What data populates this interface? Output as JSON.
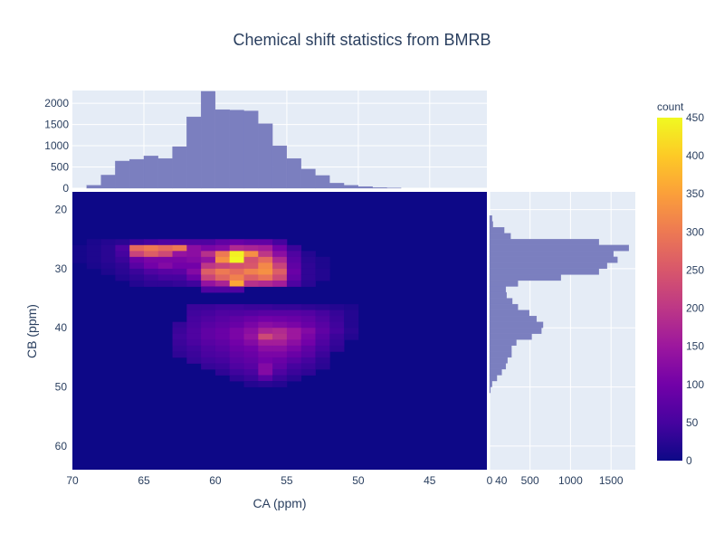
{
  "chart_data": {
    "title": "Chemical shift statistics from BMRB",
    "type": "heatmap",
    "main": {
      "xlabel": "CA (ppm)",
      "ylabel": "CB (ppm)",
      "xlim": [
        70,
        41
      ],
      "ylim": [
        17,
        64
      ],
      "x_ticks": [
        70,
        65,
        60,
        55,
        50,
        45,
        40
      ],
      "y_ticks": [
        20,
        30,
        40,
        50,
        60
      ],
      "bin_size": 1,
      "background_count": 0,
      "cells": [
        [
          69,
          26,
          8
        ],
        [
          69,
          27,
          8
        ],
        [
          69,
          28,
          8
        ],
        [
          68,
          25,
          12
        ],
        [
          68,
          26,
          15
        ],
        [
          68,
          27,
          15
        ],
        [
          68,
          28,
          15
        ],
        [
          68,
          29,
          12
        ],
        [
          67,
          25,
          20
        ],
        [
          67,
          26,
          25
        ],
        [
          67,
          27,
          25
        ],
        [
          67,
          28,
          25
        ],
        [
          67,
          29,
          20
        ],
        [
          67,
          30,
          15
        ],
        [
          66,
          25,
          25
        ],
        [
          66,
          26,
          60
        ],
        [
          66,
          27,
          50
        ],
        [
          66,
          28,
          40
        ],
        [
          66,
          29,
          30
        ],
        [
          66,
          30,
          25
        ],
        [
          66,
          31,
          18
        ],
        [
          65,
          25,
          40
        ],
        [
          65,
          26,
          280
        ],
        [
          65,
          27,
          220
        ],
        [
          65,
          28,
          90
        ],
        [
          65,
          29,
          70
        ],
        [
          65,
          30,
          40
        ],
        [
          65,
          31,
          30
        ],
        [
          65,
          32,
          20
        ],
        [
          64,
          25,
          50
        ],
        [
          64,
          26,
          300
        ],
        [
          64,
          27,
          260
        ],
        [
          64,
          28,
          110
        ],
        [
          64,
          29,
          100
        ],
        [
          64,
          30,
          60
        ],
        [
          64,
          31,
          40
        ],
        [
          64,
          32,
          30
        ],
        [
          63,
          25,
          60
        ],
        [
          63,
          26,
          280
        ],
        [
          63,
          27,
          230
        ],
        [
          63,
          28,
          110
        ],
        [
          63,
          29,
          120
        ],
        [
          63,
          30,
          70
        ],
        [
          63,
          31,
          50
        ],
        [
          63,
          32,
          30
        ],
        [
          62,
          25,
          60
        ],
        [
          62,
          26,
          300
        ],
        [
          62,
          27,
          140
        ],
        [
          62,
          28,
          110
        ],
        [
          62,
          29,
          100
        ],
        [
          62,
          30,
          75
        ],
        [
          62,
          31,
          50
        ],
        [
          62,
          32,
          35
        ],
        [
          61,
          25,
          60
        ],
        [
          61,
          26,
          130
        ],
        [
          61,
          27,
          130
        ],
        [
          61,
          28,
          120
        ],
        [
          61,
          29,
          100
        ],
        [
          61,
          30,
          120
        ],
        [
          61,
          31,
          90
        ],
        [
          61,
          32,
          45
        ],
        [
          60,
          25,
          60
        ],
        [
          60,
          26,
          110
        ],
        [
          60,
          27,
          190
        ],
        [
          60,
          28,
          140
        ],
        [
          60,
          29,
          200
        ],
        [
          60,
          30,
          260
        ],
        [
          60,
          31,
          220
        ],
        [
          60,
          32,
          140
        ],
        [
          60,
          33,
          60
        ],
        [
          59,
          25,
          80
        ],
        [
          59,
          26,
          120
        ],
        [
          59,
          27,
          300
        ],
        [
          59,
          28,
          330
        ],
        [
          59,
          29,
          220
        ],
        [
          59,
          30,
          300
        ],
        [
          59,
          31,
          270
        ],
        [
          59,
          32,
          170
        ],
        [
          59,
          33,
          60
        ],
        [
          58,
          25,
          90
        ],
        [
          58,
          26,
          180
        ],
        [
          58,
          27,
          440
        ],
        [
          58,
          28,
          460
        ],
        [
          58,
          29,
          240
        ],
        [
          58,
          30,
          280
        ],
        [
          58,
          31,
          310
        ],
        [
          58,
          32,
          360
        ],
        [
          58,
          33,
          60
        ],
        [
          57,
          25,
          80
        ],
        [
          57,
          26,
          170
        ],
        [
          57,
          27,
          330
        ],
        [
          57,
          28,
          240
        ],
        [
          57,
          29,
          250
        ],
        [
          57,
          30,
          310
        ],
        [
          57,
          31,
          260
        ],
        [
          57,
          32,
          190
        ],
        [
          56,
          25,
          80
        ],
        [
          56,
          26,
          160
        ],
        [
          56,
          27,
          200
        ],
        [
          56,
          28,
          280
        ],
        [
          56,
          29,
          320
        ],
        [
          56,
          30,
          330
        ],
        [
          56,
          31,
          290
        ],
        [
          56,
          32,
          180
        ],
        [
          55,
          25,
          50
        ],
        [
          55,
          26,
          100
        ],
        [
          55,
          27,
          130
        ],
        [
          55,
          28,
          180
        ],
        [
          55,
          29,
          220
        ],
        [
          55,
          30,
          260
        ],
        [
          55,
          31,
          230
        ],
        [
          55,
          32,
          160
        ],
        [
          54,
          26,
          40
        ],
        [
          54,
          27,
          60
        ],
        [
          54,
          28,
          70
        ],
        [
          54,
          29,
          80
        ],
        [
          54,
          30,
          90
        ],
        [
          54,
          31,
          80
        ],
        [
          54,
          32,
          60
        ],
        [
          53,
          27,
          20
        ],
        [
          53,
          28,
          25
        ],
        [
          53,
          29,
          30
        ],
        [
          53,
          30,
          30
        ],
        [
          53,
          31,
          30
        ],
        [
          53,
          32,
          25
        ],
        [
          52,
          28,
          15
        ],
        [
          52,
          29,
          15
        ],
        [
          52,
          30,
          18
        ],
        [
          52,
          31,
          18
        ],
        [
          61,
          36,
          40
        ],
        [
          60,
          36,
          40
        ],
        [
          59,
          36,
          45
        ],
        [
          58,
          36,
          45
        ],
        [
          57,
          36,
          40
        ],
        [
          56,
          36,
          40
        ],
        [
          55,
          36,
          35
        ],
        [
          54,
          36,
          35
        ],
        [
          53,
          36,
          30
        ],
        [
          52,
          36,
          25
        ],
        [
          51,
          36,
          20
        ],
        [
          50,
          36,
          15
        ],
        [
          61,
          37,
          45
        ],
        [
          60,
          37,
          50
        ],
        [
          59,
          37,
          60
        ],
        [
          58,
          37,
          60
        ],
        [
          57,
          37,
          65
        ],
        [
          56,
          37,
          70
        ],
        [
          55,
          37,
          70
        ],
        [
          54,
          37,
          70
        ],
        [
          53,
          37,
          65
        ],
        [
          52,
          37,
          50
        ],
        [
          51,
          37,
          35
        ],
        [
          50,
          37,
          20
        ],
        [
          61,
          38,
          50
        ],
        [
          60,
          38,
          60
        ],
        [
          59,
          38,
          70
        ],
        [
          58,
          38,
          80
        ],
        [
          57,
          38,
          90
        ],
        [
          56,
          38,
          100
        ],
        [
          55,
          38,
          95
        ],
        [
          54,
          38,
          90
        ],
        [
          53,
          38,
          80
        ],
        [
          52,
          38,
          60
        ],
        [
          51,
          38,
          40
        ],
        [
          50,
          38,
          20
        ],
        [
          62,
          39,
          35
        ],
        [
          61,
          39,
          55
        ],
        [
          60,
          39,
          70
        ],
        [
          59,
          39,
          80
        ],
        [
          58,
          39,
          90
        ],
        [
          57,
          39,
          110
        ],
        [
          56,
          39,
          130
        ],
        [
          55,
          39,
          120
        ],
        [
          54,
          39,
          110
        ],
        [
          53,
          39,
          90
        ],
        [
          52,
          39,
          70
        ],
        [
          51,
          39,
          45
        ],
        [
          50,
          39,
          20
        ],
        [
          62,
          40,
          40
        ],
        [
          61,
          40,
          60
        ],
        [
          60,
          40,
          80
        ],
        [
          59,
          40,
          90
        ],
        [
          58,
          40,
          110
        ],
        [
          57,
          40,
          130
        ],
        [
          56,
          40,
          170
        ],
        [
          55,
          40,
          180
        ],
        [
          54,
          40,
          150
        ],
        [
          53,
          40,
          120
        ],
        [
          52,
          40,
          80
        ],
        [
          51,
          40,
          50
        ],
        [
          50,
          40,
          25
        ],
        [
          62,
          41,
          45
        ],
        [
          61,
          41,
          60
        ],
        [
          60,
          41,
          80
        ],
        [
          59,
          41,
          90
        ],
        [
          58,
          41,
          110
        ],
        [
          57,
          41,
          140
        ],
        [
          56,
          41,
          230
        ],
        [
          55,
          41,
          190
        ],
        [
          54,
          41,
          150
        ],
        [
          53,
          41,
          110
        ],
        [
          52,
          41,
          70
        ],
        [
          51,
          41,
          40
        ],
        [
          50,
          41,
          20
        ],
        [
          62,
          42,
          40
        ],
        [
          61,
          42,
          55
        ],
        [
          60,
          42,
          70
        ],
        [
          59,
          42,
          80
        ],
        [
          58,
          42,
          100
        ],
        [
          57,
          42,
          120
        ],
        [
          56,
          42,
          160
        ],
        [
          55,
          42,
          160
        ],
        [
          54,
          42,
          130
        ],
        [
          53,
          42,
          100
        ],
        [
          52,
          42,
          60
        ],
        [
          51,
          42,
          35
        ],
        [
          62,
          43,
          35
        ],
        [
          61,
          43,
          45
        ],
        [
          60,
          43,
          60
        ],
        [
          59,
          43,
          70
        ],
        [
          58,
          43,
          90
        ],
        [
          57,
          43,
          100
        ],
        [
          56,
          43,
          130
        ],
        [
          55,
          43,
          130
        ],
        [
          54,
          43,
          110
        ],
        [
          53,
          43,
          80
        ],
        [
          52,
          43,
          50
        ],
        [
          51,
          43,
          30
        ],
        [
          62,
          44,
          30
        ],
        [
          61,
          44,
          40
        ],
        [
          60,
          44,
          55
        ],
        [
          59,
          44,
          60
        ],
        [
          58,
          44,
          80
        ],
        [
          57,
          44,
          90
        ],
        [
          56,
          44,
          110
        ],
        [
          55,
          44,
          110
        ],
        [
          54,
          44,
          90
        ],
        [
          53,
          44,
          70
        ],
        [
          52,
          44,
          40
        ],
        [
          61,
          45,
          35
        ],
        [
          60,
          45,
          45
        ],
        [
          59,
          45,
          50
        ],
        [
          58,
          45,
          70
        ],
        [
          57,
          45,
          80
        ],
        [
          56,
          45,
          100
        ],
        [
          55,
          45,
          90
        ],
        [
          54,
          45,
          70
        ],
        [
          53,
          45,
          50
        ],
        [
          52,
          45,
          30
        ],
        [
          60,
          46,
          35
        ],
        [
          59,
          46,
          40
        ],
        [
          58,
          46,
          60
        ],
        [
          57,
          46,
          70
        ],
        [
          56,
          46,
          120
        ],
        [
          55,
          46,
          80
        ],
        [
          54,
          46,
          50
        ],
        [
          53,
          46,
          40
        ],
        [
          52,
          46,
          25
        ],
        [
          59,
          47,
          30
        ],
        [
          58,
          47,
          45
        ],
        [
          57,
          47,
          55
        ],
        [
          56,
          47,
          120
        ],
        [
          55,
          47,
          60
        ],
        [
          54,
          47,
          40
        ],
        [
          53,
          47,
          30
        ],
        [
          58,
          48,
          30
        ],
        [
          57,
          48,
          40
        ],
        [
          56,
          48,
          70
        ],
        [
          55,
          48,
          40
        ],
        [
          54,
          48,
          25
        ],
        [
          57,
          49,
          20
        ],
        [
          56,
          49,
          25
        ],
        [
          55,
          49,
          20
        ]
      ]
    },
    "top_histogram": {
      "xlabel": "CA (ppm)",
      "ylim": [
        0,
        2300
      ],
      "y_ticks": [
        0,
        500,
        1000,
        1500,
        2000
      ],
      "bin_start": 40,
      "bin_size": 1,
      "counts": [
        0,
        0,
        0,
        0,
        0,
        0,
        0,
        5,
        15,
        40,
        70,
        120,
        300,
        450,
        700,
        1000,
        1520,
        1820,
        1840,
        1850,
        2280,
        1680,
        980,
        700,
        760,
        680,
        640,
        310,
        70,
        0
      ],
      "color": "#7b7fbf"
    },
    "right_histogram": {
      "ylabel": "CB (ppm)",
      "xlim": [
        0,
        1800
      ],
      "x_ticks": [
        0,
        500,
        1000,
        1500
      ],
      "bin_start": 17,
      "bin_size": 1,
      "counts": [
        0,
        0,
        0,
        0,
        30,
        40,
        180,
        260,
        1350,
        1720,
        1530,
        1580,
        1450,
        1350,
        880,
        350,
        200,
        210,
        280,
        350,
        490,
        580,
        660,
        640,
        520,
        330,
        270,
        270,
        220,
        200,
        150,
        90,
        30,
        10,
        0,
        0,
        0,
        0,
        0,
        0,
        0,
        0,
        0,
        0,
        0,
        0,
        0
      ],
      "color": "#7b7fbf"
    },
    "colorbar": {
      "title": "count",
      "range": [
        0,
        450
      ],
      "ticks": [
        0,
        50,
        100,
        150,
        200,
        250,
        300,
        350,
        400,
        450
      ],
      "colorscale": [
        "#0d0887",
        "#46039f",
        "#7201a8",
        "#9c179e",
        "#bd3786",
        "#d8576b",
        "#ed7953",
        "#fb9f3a",
        "#fdca26",
        "#f0f921"
      ]
    }
  }
}
